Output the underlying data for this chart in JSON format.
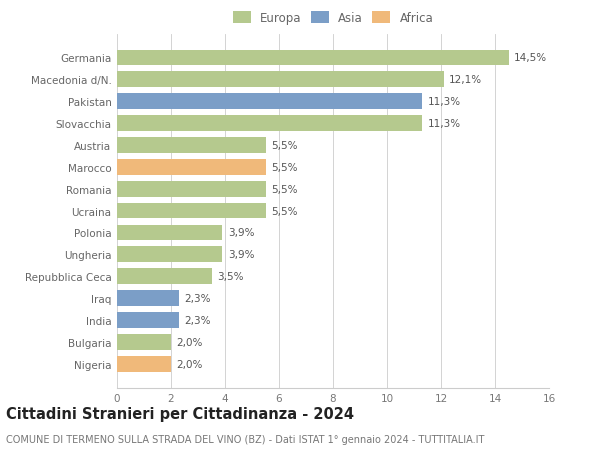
{
  "categories": [
    "Germania",
    "Macedonia d/N.",
    "Pakistan",
    "Slovacchia",
    "Austria",
    "Marocco",
    "Romania",
    "Ucraina",
    "Polonia",
    "Ungheria",
    "Repubblica Ceca",
    "Iraq",
    "India",
    "Bulgaria",
    "Nigeria"
  ],
  "values": [
    14.5,
    12.1,
    11.3,
    11.3,
    5.5,
    5.5,
    5.5,
    5.5,
    3.9,
    3.9,
    3.5,
    2.3,
    2.3,
    2.0,
    2.0
  ],
  "labels": [
    "14,5%",
    "12,1%",
    "11,3%",
    "11,3%",
    "5,5%",
    "5,5%",
    "5,5%",
    "5,5%",
    "3,9%",
    "3,9%",
    "3,5%",
    "2,3%",
    "2,3%",
    "2,0%",
    "2,0%"
  ],
  "continents": [
    "Europa",
    "Europa",
    "Asia",
    "Europa",
    "Europa",
    "Africa",
    "Europa",
    "Europa",
    "Europa",
    "Europa",
    "Europa",
    "Asia",
    "Asia",
    "Europa",
    "Africa"
  ],
  "colors": {
    "Europa": "#b5c98e",
    "Asia": "#7b9ec7",
    "Africa": "#f0b97a"
  },
  "legend_colors": {
    "Europa": "#b5c98e",
    "Asia": "#7b9ec7",
    "Africa": "#f0b97a"
  },
  "xlim": [
    0,
    16
  ],
  "xticks": [
    0,
    2,
    4,
    6,
    8,
    10,
    12,
    14,
    16
  ],
  "title": "Cittadini Stranieri per Cittadinanza - 2024",
  "subtitle": "COMUNE DI TERMENO SULLA STRADA DEL VINO (BZ) - Dati ISTAT 1° gennaio 2024 - TUTTITALIA.IT",
  "background_color": "#ffffff",
  "grid_color": "#cccccc",
  "bar_height": 0.72,
  "title_fontsize": 10.5,
  "subtitle_fontsize": 7.0,
  "label_fontsize": 7.5,
  "tick_fontsize": 7.5,
  "legend_fontsize": 8.5
}
